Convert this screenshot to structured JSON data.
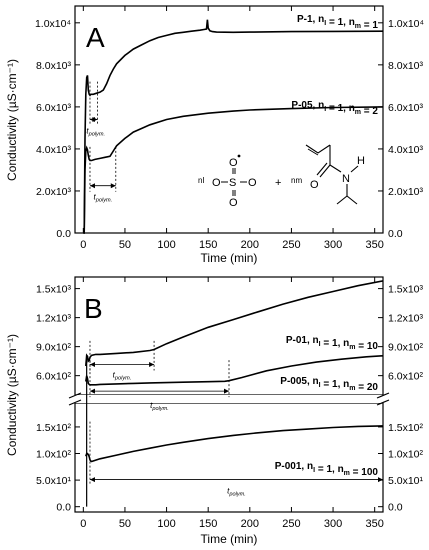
{
  "figure": {
    "shared_ylabel": "Conductivity (µS·cm⁻¹)",
    "xlabel": "Time (min)"
  },
  "chart_data": [
    {
      "type": "line",
      "panel_label": "A",
      "xlabel": "Time (min)",
      "ylabel": "Conductivity (µS·cm⁻¹)",
      "xlim": [
        -10,
        360
      ],
      "ylim": [
        0,
        10800
      ],
      "x_ticks": [
        0,
        50,
        100,
        150,
        200,
        250,
        300,
        350
      ],
      "y_ticks": [
        0,
        2000,
        4000,
        6000,
        8000,
        10000
      ],
      "y_tick_labels": [
        "0.0",
        "2.0x10³",
        "4.0x10³",
        "6.0x10³",
        "8.0x10³",
        "1.0x10⁴"
      ],
      "series": [
        {
          "name": "P-1, nI = 1, nm = 1",
          "x": [
            0,
            1,
            2,
            3,
            4,
            5,
            6,
            7,
            8,
            9,
            12,
            16,
            20,
            24,
            28,
            32,
            36,
            40,
            50,
            60,
            70,
            80,
            90,
            100,
            110,
            120,
            130,
            140,
            145,
            148,
            149,
            150,
            152,
            155,
            160,
            180,
            200,
            250,
            300,
            360
          ],
          "y": [
            0,
            0,
            4500,
            6600,
            7400,
            7500,
            6800,
            6600,
            6550,
            6600,
            6600,
            6650,
            6700,
            6800,
            7100,
            7500,
            7800,
            8050,
            8450,
            8750,
            8950,
            9150,
            9300,
            9400,
            9500,
            9550,
            9600,
            9650,
            9680,
            9700,
            10150,
            9750,
            9620,
            9580,
            9560,
            9550,
            9560,
            9580,
            9590,
            9600
          ]
        },
        {
          "name": "P-05, nI = 1, nm = 2",
          "x": [
            0,
            1,
            2,
            3,
            4,
            5,
            6,
            7,
            8,
            10,
            14,
            20,
            26,
            32,
            36,
            40,
            50,
            60,
            80,
            100,
            120,
            150,
            180,
            200,
            250,
            300,
            360
          ],
          "y": [
            0,
            0,
            3000,
            3900,
            4050,
            3950,
            3700,
            3500,
            3450,
            3450,
            3500,
            3550,
            3600,
            3650,
            3900,
            4150,
            4500,
            4800,
            5150,
            5400,
            5550,
            5700,
            5800,
            5850,
            5920,
            5970,
            6000
          ]
        }
      ],
      "annotations": [
        {
          "type": "t_polym",
          "label": "tpolym.",
          "x_start": 8,
          "x_end": 17,
          "y": 5400
        },
        {
          "type": "t_polym",
          "label": "tpolym.",
          "x_start": 8,
          "x_end": 39,
          "y": 2250
        }
      ],
      "inset_labels": {
        "initiator": "nI",
        "monomer": "nm",
        "plus": "+",
        "n_label": "N",
        "h_label": "H",
        "o_label": "O",
        "s_label": "S"
      }
    },
    {
      "type": "line",
      "panel_label": "B",
      "xlabel": "Time (min)",
      "ylabel": "Conductivity (µS·cm⁻¹)",
      "xlim": [
        -10,
        360
      ],
      "axis_break": true,
      "upper_ylim": [
        400,
        1620
      ],
      "upper_y_ticks": [
        600,
        900,
        1200,
        1500
      ],
      "upper_y_tick_labels": [
        "6.0x10²",
        "9.0x10²",
        "1.2x10³",
        "1.5x10³"
      ],
      "lower_ylim": [
        -10,
        195
      ],
      "lower_y_ticks": [
        0,
        50,
        100,
        150
      ],
      "lower_y_tick_labels": [
        "0.0",
        "5.0x10¹",
        "1.0x10²",
        "1.5x10²"
      ],
      "x_ticks": [
        0,
        50,
        100,
        150,
        200,
        250,
        300,
        350
      ],
      "series": [
        {
          "name": "P-01, nI = 1, nm = 10",
          "axis": "upper",
          "x": [
            3,
            4,
            5,
            6,
            7,
            8,
            9,
            10,
            15,
            20,
            40,
            60,
            80,
            85,
            100,
            120,
            150,
            180,
            210,
            240,
            270,
            300,
            330,
            360
          ],
          "y": [
            700,
            810,
            800,
            750,
            760,
            790,
            800,
            810,
            820,
            820,
            830,
            840,
            860,
            870,
            930,
            1000,
            1100,
            1180,
            1260,
            1340,
            1410,
            1470,
            1530,
            1580
          ]
        },
        {
          "name": "P-005, nI = 1, nm = 20",
          "axis": "upper",
          "x": [
            3,
            4,
            5,
            6,
            7,
            8,
            10,
            15,
            20,
            40,
            60,
            80,
            100,
            120,
            150,
            170,
            175,
            190,
            220,
            250,
            280,
            310,
            340,
            360
          ],
          "y": [
            540,
            600,
            570,
            520,
            510,
            505,
            505,
            505,
            510,
            515,
            520,
            525,
            528,
            532,
            538,
            542,
            548,
            580,
            650,
            700,
            740,
            770,
            795,
            805
          ]
        },
        {
          "name": "P-001, nI = 1, nm = 100",
          "axis": "lower",
          "x": [
            3,
            4,
            5,
            6,
            7,
            8,
            9,
            10,
            20,
            40,
            60,
            80,
            100,
            120,
            150,
            180,
            210,
            240,
            270,
            300,
            330,
            360
          ],
          "y": [
            95,
            100,
            100,
            98,
            94,
            88,
            86,
            85,
            90,
            97,
            104,
            110,
            116,
            121,
            128,
            134,
            139,
            143,
            146,
            149,
            151,
            152
          ]
        }
      ],
      "annotations": [
        {
          "type": "t_polym",
          "label": "tpolym.",
          "x_start": 8,
          "x_end": 85,
          "y": 715
        },
        {
          "type": "t_polym",
          "label": "tpolym.",
          "x_start": 8,
          "x_end": 175,
          "y": 440
        },
        {
          "type": "t_polym",
          "label": "tpolym.",
          "x_start": 8,
          "x_end": 360,
          "y": 51
        }
      ]
    }
  ]
}
